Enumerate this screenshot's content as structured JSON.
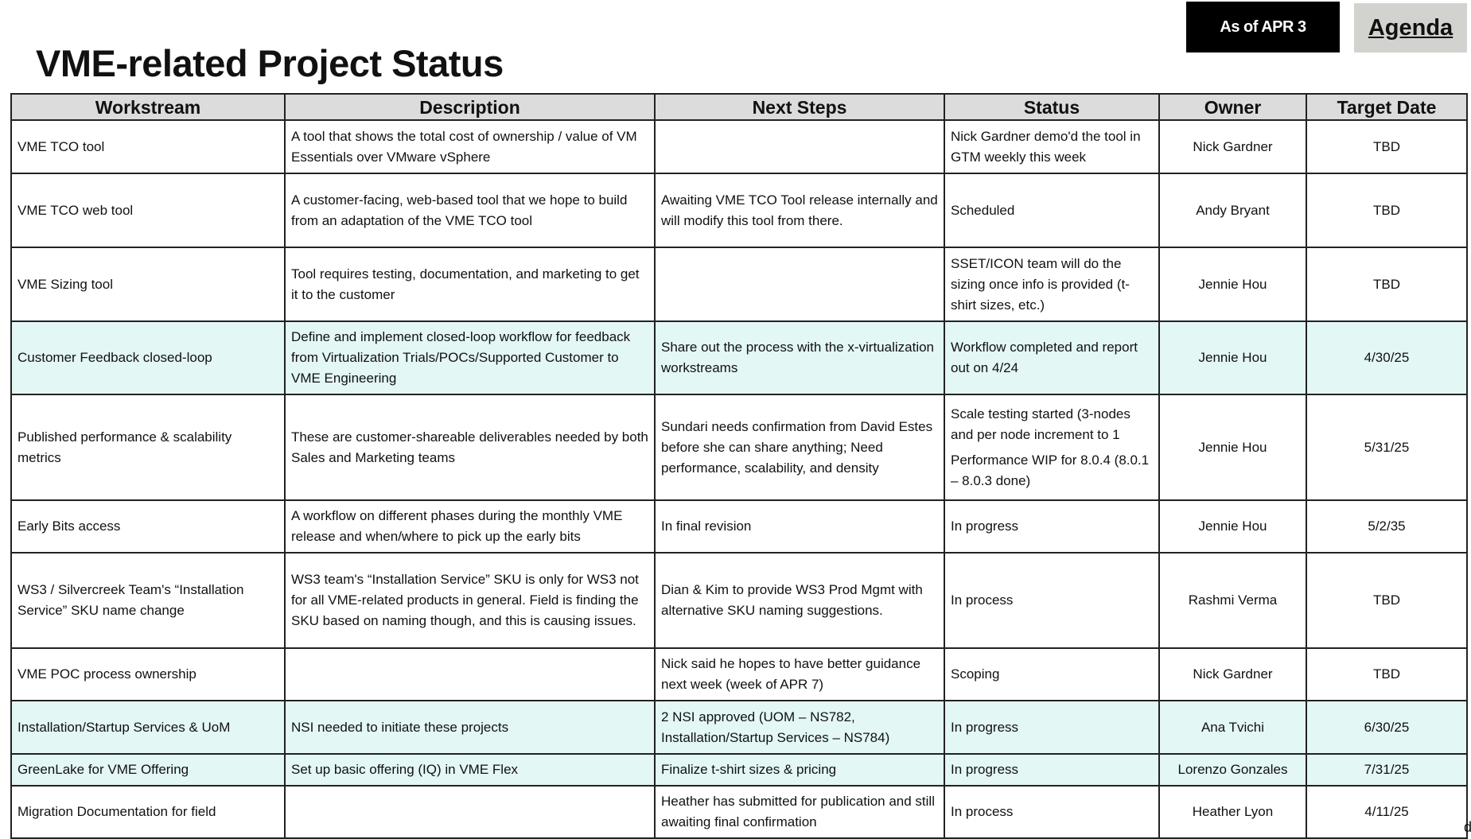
{
  "header": {
    "title": "VME-related Project Status",
    "as_of": "As of APR 3",
    "agenda_link": "Agenda"
  },
  "table": {
    "columns": [
      "Workstream",
      "Description",
      "Next Steps",
      "Status",
      "Owner",
      "Target Date"
    ],
    "rows": [
      {
        "highlight": false,
        "workstream": "VME TCO tool",
        "description": "A tool that shows the total cost of ownership / value of VM Essentials over VMware vSphere",
        "next_steps": "",
        "status": [
          "Nick Gardner demo'd the tool in GTM weekly this week"
        ],
        "owner": "Nick Gardner",
        "target_date": "TBD"
      },
      {
        "highlight": false,
        "workstream": "VME TCO web tool",
        "description": "A customer-facing, web-based tool that we hope to build from an adaptation of the VME TCO tool",
        "next_steps": "Awaiting VME TCO Tool release internally and will modify this tool from there.",
        "status": [
          "Scheduled"
        ],
        "owner": "Andy Bryant",
        "target_date": "TBD"
      },
      {
        "highlight": false,
        "workstream": "VME Sizing tool",
        "description": "Tool requires testing, documentation, and marketing to get it to the customer",
        "next_steps": "",
        "status": [
          "SSET/ICON team will do the sizing once info is provided (t-shirt sizes, etc.)"
        ],
        "owner": "Jennie Hou",
        "target_date": "TBD"
      },
      {
        "highlight": true,
        "workstream": "Customer Feedback closed-loop",
        "description": "Define and implement closed-loop workflow for feedback from Virtualization Trials/POCs/Supported Customer to VME Engineering",
        "next_steps": "Share out the process with the x-virtualization workstreams",
        "status": [
          "Workflow completed and report out on 4/24"
        ],
        "owner": "Jennie Hou",
        "target_date": "4/30/25"
      },
      {
        "highlight": false,
        "workstream": "Published performance & scalability metrics",
        "description": "These are customer-shareable deliverables needed by both Sales and Marketing teams",
        "next_steps": "Sundari needs confirmation from David Estes before she can share anything; Need performance, scalability, and density",
        "status": [
          "Scale testing started (3-nodes and per node increment to 1",
          "Performance WIP for 8.0.4 (8.0.1 – 8.0.3 done)"
        ],
        "owner": "Jennie Hou",
        "target_date": "5/31/25"
      },
      {
        "highlight": false,
        "workstream": "Early Bits access",
        "description": "A workflow on different phases during the monthly VME release and when/where to pick up the early bits",
        "next_steps": "In final revision",
        "status": [
          "In progress"
        ],
        "owner": "Jennie Hou",
        "target_date": "5/2/35"
      },
      {
        "highlight": false,
        "workstream": "WS3 / Silvercreek Team's “Installation Service” SKU name change",
        "description": "WS3 team's “Installation Service” SKU is only for WS3 not for all VME-related products in general. Field is finding the SKU based on naming though, and this is causing issues.",
        "next_steps": "Dian & Kim to provide WS3 Prod Mgmt with alternative SKU naming suggestions.",
        "status": [
          "In process"
        ],
        "owner": "Rashmi Verma",
        "target_date": "TBD"
      },
      {
        "highlight": false,
        "workstream": "VME POC process ownership",
        "description": "",
        "next_steps": "Nick said he hopes to have better guidance next week (week of APR 7)",
        "status": [
          "Scoping"
        ],
        "owner": "Nick Gardner",
        "target_date": "TBD"
      },
      {
        "highlight": true,
        "workstream": "Installation/Startup Services & UoM",
        "description": "NSI needed to initiate these projects",
        "next_steps": "2 NSI approved (UOM – NS782, Installation/Startup Services – NS784)",
        "status": [
          "In progress"
        ],
        "owner": "Ana Tvichi",
        "target_date": "6/30/25"
      },
      {
        "highlight": true,
        "workstream": "GreenLake for VME Offering",
        "description": "Set up basic offering (IQ) in VME Flex",
        "next_steps": "Finalize t-shirt sizes & pricing",
        "status": [
          "In progress"
        ],
        "owner": "Lorenzo Gonzales",
        "target_date": "7/31/25"
      },
      {
        "highlight": false,
        "workstream": "Migration Documentation for field",
        "description": "",
        "next_steps": "Heather has submitted for publication and still awaiting final confirmation",
        "status": [
          "In process"
        ],
        "owner": "Heather Lyon",
        "target_date": "4/11/25"
      }
    ]
  },
  "stray_char": "d",
  "colors": {
    "header_bg": "#dcdcdc",
    "highlight_row": "#e3f7f5",
    "as_of_bg": "#000000",
    "agenda_bg": "#d2d2cf"
  }
}
